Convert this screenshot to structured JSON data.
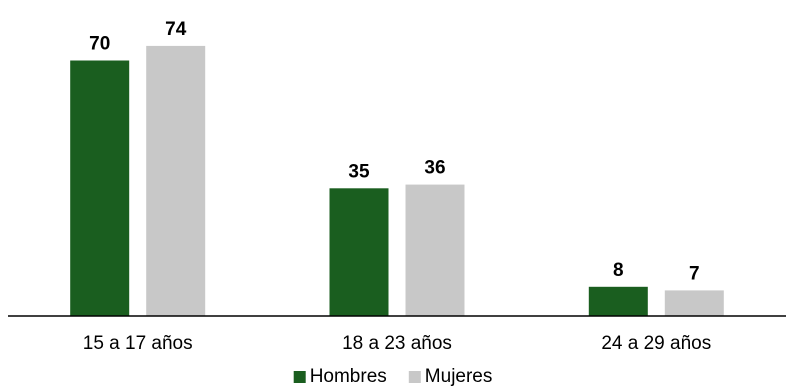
{
  "chart_data": {
    "type": "bar",
    "title": "",
    "xlabel": "",
    "ylabel": "",
    "categories": [
      "15 a 17 años",
      "18 a 23 años",
      "24 a 29 años"
    ],
    "series": [
      {
        "name": "Hombres",
        "values": [
          70,
          35,
          8
        ],
        "color": "#1a5e1f"
      },
      {
        "name": "Mujeres",
        "values": [
          74,
          36,
          7
        ],
        "color": "#c8c8c8"
      }
    ],
    "ylim": [
      0,
      80
    ],
    "grid": false,
    "show_data_labels": true,
    "legend": {
      "position": "bottom"
    }
  }
}
